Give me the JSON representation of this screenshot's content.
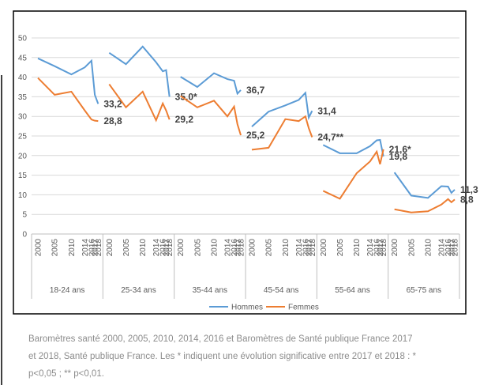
{
  "chart_data": {
    "type": "line",
    "groups": [
      "18-24 ans",
      "25-34 ans",
      "35-44 ans",
      "45-54 ans",
      "55-64 ans",
      "65-75 ans"
    ],
    "categories": [
      "2000",
      "2005",
      "2010",
      "2014",
      "2016",
      "2017",
      "2018",
      "2000",
      "2005",
      "2010",
      "2014",
      "2016",
      "2017",
      "2018",
      "2000",
      "2005",
      "2010",
      "2014",
      "2016",
      "2017",
      "2018",
      "2000",
      "2005",
      "2010",
      "2014",
      "2016",
      "2017",
      "2018",
      "2000",
      "2005",
      "2010",
      "2014",
      "2016",
      "2017",
      "2018",
      "2000",
      "2005",
      "2010",
      "2014",
      "2016",
      "2017",
      "2018"
    ],
    "series": [
      {
        "name": "Hommes",
        "color": "#5b9bd5",
        "values": [
          44.8,
          42.8,
          40.7,
          42.5,
          44.2,
          35.5,
          33.2,
          46.2,
          43.3,
          47.8,
          43.8,
          41.5,
          41.8,
          35.0,
          40.1,
          37.5,
          41.0,
          39.5,
          39.1,
          35.8,
          36.7,
          27.4,
          31.2,
          32.8,
          34.2,
          36.0,
          29.7,
          31.4,
          22.7,
          20.6,
          20.6,
          22.4,
          23.9,
          24.0,
          19.8,
          15.7,
          9.8,
          9.2,
          12.2,
          12.1,
          10.5,
          11.3
        ],
        "value_labels": [
          null,
          null,
          null,
          null,
          null,
          null,
          "33,2",
          null,
          null,
          null,
          null,
          null,
          null,
          "35,0*",
          null,
          null,
          null,
          null,
          null,
          null,
          "36,7",
          null,
          null,
          null,
          null,
          null,
          null,
          "31,4",
          null,
          null,
          null,
          null,
          null,
          null,
          "19,8",
          null,
          null,
          null,
          null,
          null,
          null,
          "11,3"
        ]
      },
      {
        "name": "Femmes",
        "color": "#ed7d31",
        "values": [
          39.8,
          35.5,
          36.3,
          31.5,
          29.2,
          28.9,
          28.8,
          38.2,
          32.3,
          36.3,
          29.0,
          33.3,
          31.5,
          29.2,
          35.2,
          32.3,
          34.0,
          30.0,
          32.5,
          28.0,
          25.2,
          21.5,
          22.0,
          29.3,
          28.8,
          30.0,
          27.0,
          24.7,
          11.0,
          9.0,
          15.5,
          18.5,
          21.0,
          17.8,
          21.6,
          6.3,
          5.5,
          5.8,
          7.5,
          8.9,
          8.1,
          8.8
        ],
        "value_labels": [
          null,
          null,
          null,
          null,
          null,
          null,
          "28,8",
          null,
          null,
          null,
          null,
          null,
          null,
          "29,2",
          null,
          null,
          null,
          null,
          null,
          null,
          "25,2",
          null,
          null,
          null,
          null,
          null,
          null,
          "24,7**",
          null,
          null,
          null,
          null,
          null,
          null,
          "21,6*",
          null,
          null,
          null,
          null,
          null,
          null,
          "8,8"
        ]
      }
    ],
    "ylim": [
      0,
      50
    ],
    "yticks": [
      0,
      5,
      10,
      15,
      20,
      25,
      30,
      35,
      40,
      45,
      50
    ],
    "grid": true,
    "legend": "bottom"
  },
  "caption": [
    "Baromètres santé 2000, 2005, 2010, 2014, 2016 et Baromètres de Santé publique France 2017",
    "et 2018, Santé publique France. Les * indiquent une évolution significative entre 2017 et 2018 : *",
    "p<0,05 ; ** p<0,01."
  ]
}
